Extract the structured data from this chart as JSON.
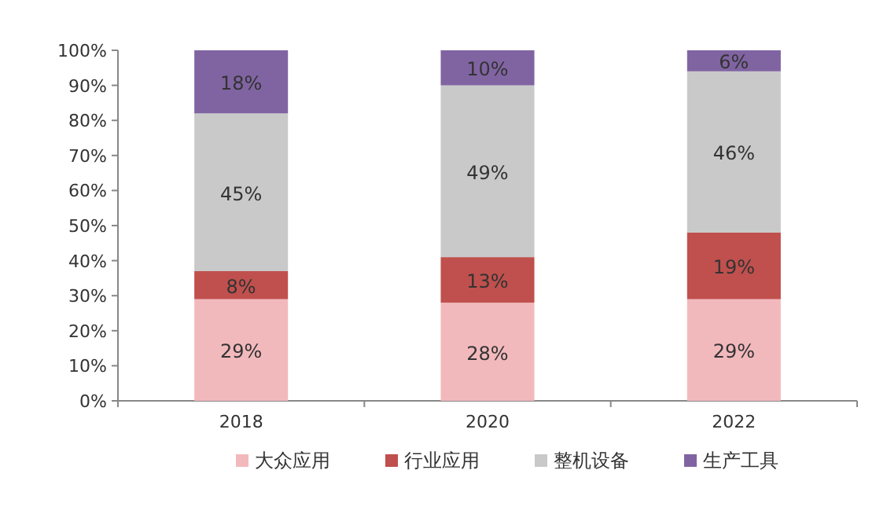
{
  "chart_data": {
    "type": "bar",
    "stacked": true,
    "categories": [
      "2018",
      "2020",
      "2022"
    ],
    "series": [
      {
        "name": "大众应用",
        "color": "#f2b9bd",
        "values": [
          29,
          28,
          29
        ],
        "value_labels": [
          "29%",
          "28%",
          "29%"
        ]
      },
      {
        "name": "行业应用",
        "color": "#c0504d",
        "values": [
          8,
          13,
          19
        ],
        "value_labels": [
          "8%",
          "13%",
          "19%"
        ]
      },
      {
        "name": "整机设备",
        "color": "#c9c9c9",
        "values": [
          45,
          49,
          46
        ],
        "value_labels": [
          "45%",
          "49%",
          "46%"
        ]
      },
      {
        "name": "生产工具",
        "color": "#8064a2",
        "values": [
          18,
          10,
          6
        ],
        "value_labels": [
          "18%",
          "10%",
          "6%"
        ]
      }
    ],
    "ylim": [
      0,
      100
    ],
    "yticks": [
      {
        "value": 0,
        "label": "0%"
      },
      {
        "value": 10,
        "label": "10%"
      },
      {
        "value": 20,
        "label": "20%"
      },
      {
        "value": 30,
        "label": "30%"
      },
      {
        "value": 40,
        "label": "40%"
      },
      {
        "value": 50,
        "label": "50%"
      },
      {
        "value": 60,
        "label": "60%"
      },
      {
        "value": 70,
        "label": "70%"
      },
      {
        "value": 80,
        "label": "80%"
      },
      {
        "value": 90,
        "label": "90%"
      },
      {
        "value": 100,
        "label": "100%"
      }
    ],
    "legend": "bottom",
    "grid": false
  }
}
